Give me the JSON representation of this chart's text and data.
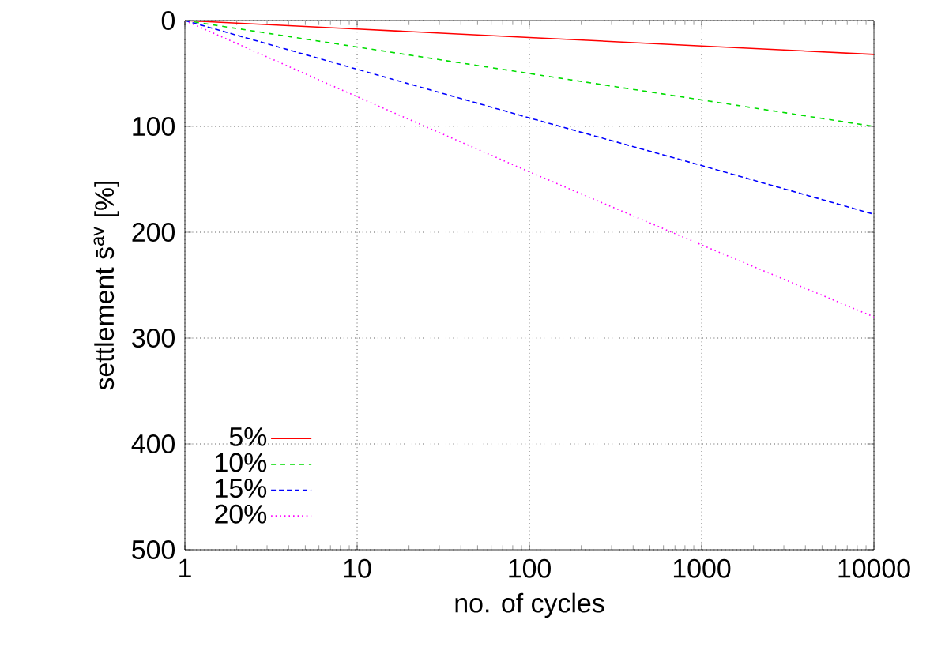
{
  "chart_data": {
    "type": "line",
    "xlabel": "no. of cycles",
    "ylabel": "settlement  s̄$^{av}$  [%]",
    "x": [
      1,
      10,
      100,
      1000,
      10000
    ],
    "series": [
      {
        "name": "5%",
        "color": "#ff0000",
        "line_style": "solid",
        "values": [
          0,
          8,
          16,
          24,
          32
        ]
      },
      {
        "name": "10%",
        "color": "#00dd00",
        "line_style": "dashed",
        "values": [
          0,
          25,
          50,
          75,
          100
        ]
      },
      {
        "name": "15%",
        "color": "#0000ff",
        "line_style": "dashed",
        "values": [
          0,
          46,
          92,
          137,
          183
        ]
      },
      {
        "name": "20%",
        "color": "#ff00ff",
        "line_style": "dotted",
        "values": [
          0,
          72,
          143,
          212,
          280
        ]
      }
    ],
    "log": "x",
    "xlim": [
      1,
      10000
    ],
    "xticks": [
      1,
      10,
      100,
      1000,
      10000
    ],
    "ylim": [
      500,
      0
    ],
    "yticks": [
      0,
      100,
      200,
      300,
      400,
      500
    ],
    "grid": true,
    "legend": "bottom left",
    "marker": "none"
  }
}
